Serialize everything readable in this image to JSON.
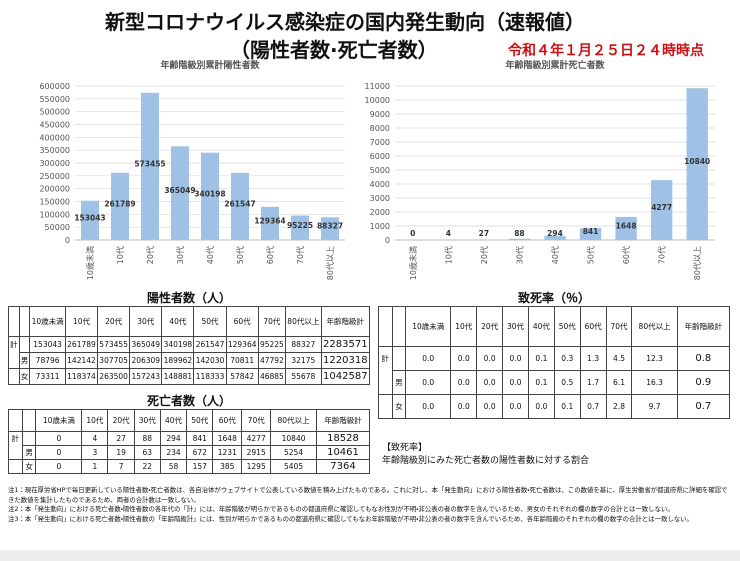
{
  "header": {
    "title": "新型コロナウイルス感染症の国内発生動向（速報値）",
    "subtitle": "（陽性者数·死亡者数）",
    "date": "令和４年１月２５日２４時時点"
  },
  "chart_data": [
    {
      "type": "bar",
      "title": "年齢階級別累計陽性者数",
      "color": "#9fc1e6",
      "grid": true,
      "categories": [
        "10歳未満",
        "10代",
        "20代",
        "30代",
        "40代",
        "50代",
        "60代",
        "70代",
        "80代以上"
      ],
      "values": [
        153043,
        261789,
        573455,
        365049,
        340198,
        261547,
        129364,
        95225,
        88327
      ],
      "ylim": [
        0,
        600000
      ],
      "yticks": [
        0,
        50000,
        100000,
        150000,
        200000,
        250000,
        300000,
        350000,
        400000,
        450000,
        500000,
        550000,
        600000
      ]
    },
    {
      "type": "bar",
      "title": "年齢階級別累計死亡者数",
      "color": "#9fc1e6",
      "grid": true,
      "categories": [
        "10歳未満",
        "10代",
        "20代",
        "30代",
        "40代",
        "50代",
        "60代",
        "70代",
        "80代以上"
      ],
      "values": [
        0,
        4,
        27,
        88,
        294,
        841,
        1648,
        4277,
        10840
      ],
      "ylim": [
        0,
        11000
      ],
      "yticks": [
        0,
        1000,
        2000,
        3000,
        4000,
        5000,
        6000,
        7000,
        8000,
        9000,
        10000,
        11000
      ]
    }
  ],
  "tables": {
    "positive": {
      "title": "陽性者数（人）",
      "columns": [
        "10歳未満",
        "10代",
        "20代",
        "30代",
        "40代",
        "50代",
        "60代",
        "70代",
        "80代以上",
        "年齢階級計"
      ],
      "rows": [
        {
          "label": "計",
          "cells": [
            "153043",
            "261789",
            "573455",
            "365049",
            "340198",
            "261547",
            "129364",
            "95225",
            "88327",
            "2283571"
          ]
        },
        {
          "label": "男",
          "cells": [
            "78796",
            "142142",
            "307705",
            "206309",
            "189962",
            "142030",
            "70811",
            "47792",
            "32175",
            "1220318"
          ]
        },
        {
          "label": "女",
          "cells": [
            "73311",
            "118374",
            "263500",
            "157243",
            "148881",
            "118333",
            "57842",
            "46885",
            "55678",
            "1042587"
          ]
        }
      ]
    },
    "death": {
      "title": "死亡者数（人）",
      "columns": [
        "10歳未満",
        "10代",
        "20代",
        "30代",
        "40代",
        "50代",
        "60代",
        "70代",
        "80代以上",
        "年齢階級計"
      ],
      "rows": [
        {
          "label": "計",
          "cells": [
            "0",
            "4",
            "27",
            "88",
            "294",
            "841",
            "1648",
            "4277",
            "10840",
            "18528"
          ]
        },
        {
          "label": "男",
          "cells": [
            "0",
            "3",
            "19",
            "63",
            "234",
            "672",
            "1231",
            "2915",
            "5254",
            "10461"
          ]
        },
        {
          "label": "女",
          "cells": [
            "0",
            "1",
            "7",
            "22",
            "58",
            "157",
            "385",
            "1295",
            "5405",
            "7364"
          ]
        }
      ]
    },
    "rate": {
      "title": "致死率（％）",
      "columns": [
        "10歳未満",
        "10代",
        "20代",
        "30代",
        "40代",
        "50代",
        "60代",
        "70代",
        "80代以上",
        "年齢階級計"
      ],
      "rows": [
        {
          "label": "計",
          "cells": [
            "0.0",
            "0.0",
            "0.0",
            "0.0",
            "0.1",
            "0.3",
            "1.3",
            "4.5",
            "12.3",
            "0.8"
          ]
        },
        {
          "label": "男",
          "cells": [
            "0.0",
            "0.0",
            "0.0",
            "0.0",
            "0.1",
            "0.5",
            "1.7",
            "6.1",
            "16.3",
            "0.9"
          ]
        },
        {
          "label": "女",
          "cells": [
            "0.0",
            "0.0",
            "0.0",
            "0.0",
            "0.0",
            "0.1",
            "0.7",
            "2.8",
            "9.7",
            "0.7"
          ]
        }
      ]
    }
  },
  "rate_note": {
    "title": "【致死率】",
    "text": "年齢階級別にみた死亡者数の陽性者数に対する割合"
  },
  "notes": [
    "注1：現在厚労省HPで毎日更新している陽性者数・死亡者数は、各自治体がウェブサイトで公表している数値を積み上げたものである。これに対し、本「発生動向」における陽性者数・死亡者数は、この数値を基に、厚生労働省が都道府県に詳細を確認できた数値を集計したものであるため、両者の合計数は一致しない。",
    "注2：本「発生動向」における死亡者数・陽性者数の各年代の「計」には、年齢階級が明らかであるものの都道府県に確認してもなお性別が不明・非公表の者の数字を含んでいるため、男女のそれぞれの欄の数字の合計とは一致しない。",
    "注3：本「発生動向」における死亡者数・陽性者数の「年齢階級計」には、性別が明らかであるものの都道府県に確認してもなお年齢階級が不明・非公表の者の数字を含んでいるため、各年齢階級のそれぞれの欄の数字の合計とは一致しない。"
  ]
}
